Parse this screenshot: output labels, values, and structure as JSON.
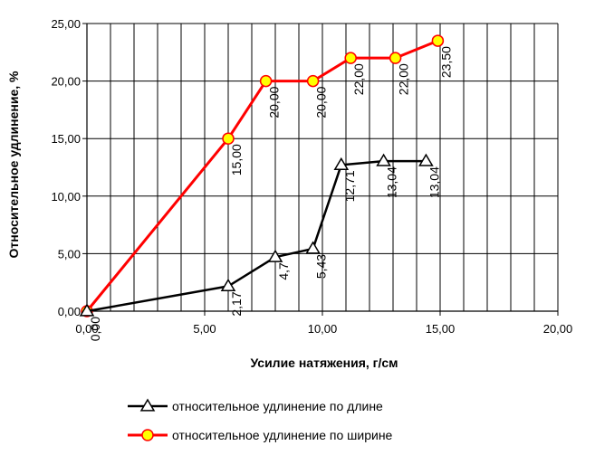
{
  "chart_data": {
    "type": "line",
    "xlabel": "Усилие натяжения, г/см",
    "ylabel": "Относительное удлинение, %",
    "xlim": [
      0,
      20
    ],
    "ylim": [
      0,
      25
    ],
    "x_ticks": [
      "0,00",
      "5,00",
      "10,00",
      "15,00",
      "20,00"
    ],
    "y_ticks": [
      "0,00",
      "5,00",
      "10,00",
      "15,00",
      "20,00",
      "25,00"
    ],
    "grid": "vertical every 1 unit, horizontal every 5 units",
    "legend_position": "bottom",
    "series": [
      {
        "name": "относительное удлинение по длине",
        "color": "#000000",
        "marker": "triangle",
        "points": [
          {
            "x": 0.0,
            "y": 0.0,
            "label": "0,00"
          },
          {
            "x": 6.0,
            "y": 2.17,
            "label": "2,17"
          },
          {
            "x": 8.0,
            "y": 4.7,
            "label": "4,7"
          },
          {
            "x": 9.6,
            "y": 5.43,
            "label": "5,43"
          },
          {
            "x": 10.8,
            "y": 12.71,
            "label": "12,71"
          },
          {
            "x": 12.6,
            "y": 13.04,
            "label": "13,04"
          },
          {
            "x": 14.4,
            "y": 13.04,
            "label": "13,04"
          }
        ]
      },
      {
        "name": "относительное удлинение по ширине",
        "color": "#ff0000",
        "marker_fill": "#ffff00",
        "marker": "circle",
        "points": [
          {
            "x": 0.0,
            "y": 0.0
          },
          {
            "x": 6.0,
            "y": 15.0,
            "label": "15,00"
          },
          {
            "x": 7.6,
            "y": 20.0,
            "label": "20,00"
          },
          {
            "x": 9.6,
            "y": 20.0,
            "label": "20,00"
          },
          {
            "x": 11.2,
            "y": 22.0,
            "label": "22,00"
          },
          {
            "x": 13.1,
            "y": 22.0,
            "label": "22,00"
          },
          {
            "x": 14.9,
            "y": 23.5,
            "label": "23,50"
          }
        ]
      }
    ]
  }
}
